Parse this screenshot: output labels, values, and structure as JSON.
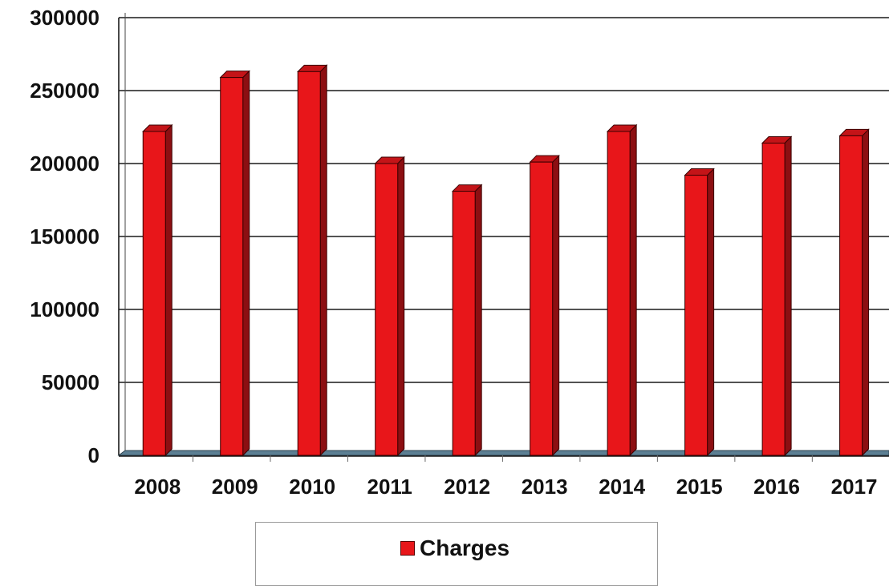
{
  "chart_data": {
    "type": "bar",
    "categories": [
      "2008",
      "2009",
      "2010",
      "2011",
      "2012",
      "2013",
      "2014",
      "2015",
      "2016",
      "2017"
    ],
    "series": [
      {
        "name": "Charges",
        "values": [
          222000,
          259000,
          263000,
          200000,
          181000,
          201000,
          222000,
          192000,
          214000,
          219000
        ]
      }
    ],
    "y_ticks": [
      "300000",
      "250000",
      "200000",
      "150000",
      "100000",
      "50000",
      "0"
    ],
    "ylim": [
      0,
      300000
    ],
    "grid": true,
    "legend_position": "bottom",
    "colors": {
      "bar_front": "#e8161a",
      "bar_side": "#8c0f12",
      "bar_top": "#c41418",
      "floor": "#5c7f93"
    }
  }
}
